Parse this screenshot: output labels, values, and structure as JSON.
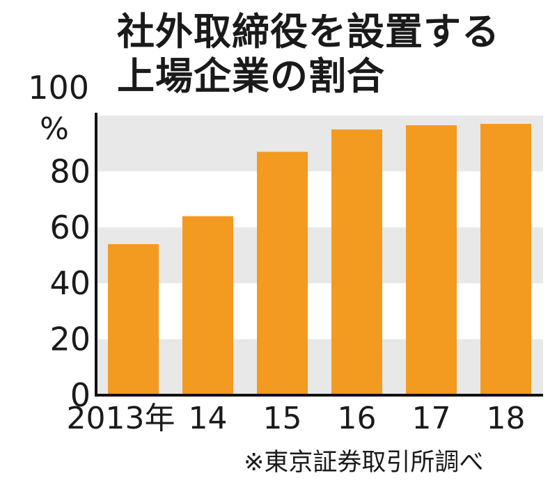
{
  "title_lines": [
    "社外取締役を設置する",
    "上場企業の割合"
  ],
  "source_note": "※東京証券取引所調べ",
  "colors": {
    "bar": "#f39a21",
    "band": "#e8e8e9",
    "axis": "#111111",
    "text": "#1a1a1a"
  },
  "chart_data": {
    "type": "bar",
    "title": "社外取締役を設置する上場企業の割合",
    "categories": [
      "2013年",
      "14",
      "15",
      "16",
      "17",
      "18"
    ],
    "values": [
      54,
      64,
      87,
      95,
      96.5,
      97
    ],
    "ylabel": "%",
    "ylim": [
      0,
      100
    ],
    "yticks": [
      "0",
      "20",
      "40",
      "60",
      "80",
      "100"
    ],
    "grid": "alternating horizontal bands",
    "legend": "none"
  }
}
